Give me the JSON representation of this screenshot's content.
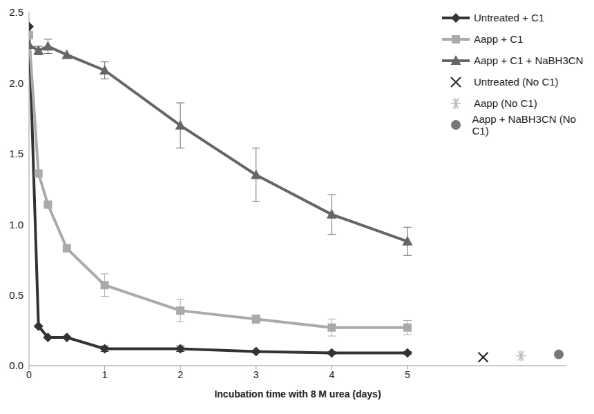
{
  "chart_data": {
    "type": "line",
    "x_label": "Incubation time with 8 M urea (days)",
    "xlim": [
      0,
      7.1
    ],
    "xticks": [
      0,
      1,
      2,
      3,
      4,
      5
    ],
    "ylim": [
      0,
      2.5
    ],
    "yticks": [
      {
        "value": 0,
        "label": "0.0"
      },
      0.5,
      {
        "value": 1,
        "label": "1.0"
      },
      1.5,
      {
        "value": 2,
        "label": "2.0"
      },
      2.5
    ],
    "grid": false,
    "legend": "upper right",
    "series": [
      {
        "name": "Untreated + C1",
        "type": "line",
        "marker": "diamond",
        "color": "#333333",
        "x": [
          0,
          0.125,
          0.25,
          0.5,
          1,
          2,
          3,
          4,
          5
        ],
        "values": [
          2.4,
          0.28,
          0.2,
          0.2,
          0.12,
          0.12,
          0.1,
          0.09,
          0.09
        ],
        "errors": [
          null,
          null,
          null,
          null,
          0.02,
          0.02,
          0.01,
          0.01,
          0.01
        ]
      },
      {
        "name": "Aapp + C1",
        "type": "line",
        "marker": "square",
        "color": "#aaaaaa",
        "x": [
          0,
          0.125,
          0.25,
          0.5,
          1,
          2,
          3,
          4,
          5
        ],
        "values": [
          2.34,
          1.36,
          1.14,
          0.83,
          0.57,
          0.39,
          0.33,
          0.27,
          0.27
        ],
        "errors": [
          null,
          null,
          null,
          null,
          0.08,
          0.08,
          0.03,
          0.06,
          0.05
        ]
      },
      {
        "name": "Aapp + C1 + NaBH3CN",
        "type": "line",
        "marker": "triangle",
        "color": "#666666",
        "x": [
          0,
          0.125,
          0.25,
          0.5,
          1,
          2,
          3,
          4,
          5
        ],
        "values": [
          2.27,
          2.23,
          2.26,
          2.2,
          2.09,
          1.7,
          1.35,
          1.07,
          0.88
        ],
        "errors": [
          null,
          0.03,
          0.05,
          null,
          0.06,
          0.16,
          0.19,
          0.14,
          0.1
        ]
      },
      {
        "name": "Untreated (No C1)",
        "type": "scatter",
        "marker": "x",
        "color": "#222222",
        "x": [
          6
        ],
        "values": [
          0.06
        ],
        "errors": [
          null
        ]
      },
      {
        "name": "Aapp (No C1)",
        "type": "scatter",
        "marker": "asterisk",
        "color": "#bbbbbb",
        "x": [
          6.5
        ],
        "values": [
          0.07
        ],
        "errors": [
          null
        ]
      },
      {
        "name": "Aapp + NaBH3CN (No C1)",
        "type": "scatter",
        "marker": "circle",
        "color": "#777777",
        "x": [
          7
        ],
        "values": [
          0.08
        ],
        "errors": [
          null
        ]
      }
    ]
  }
}
